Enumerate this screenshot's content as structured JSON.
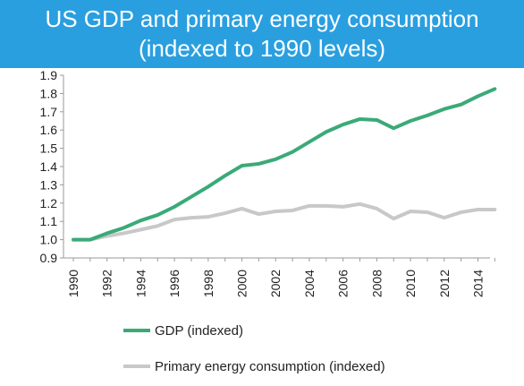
{
  "chart_data": {
    "type": "line",
    "title": [
      "US GDP and primary energy consumption",
      "(indexed to 1990 levels)"
    ],
    "xlabel": "",
    "ylabel": "",
    "x": [
      1990,
      1991,
      1992,
      1993,
      1994,
      1995,
      1996,
      1997,
      1998,
      1999,
      2000,
      2001,
      2002,
      2003,
      2004,
      2005,
      2006,
      2007,
      2008,
      2009,
      2010,
      2011,
      2012,
      2013,
      2014,
      2015
    ],
    "x_ticks": [
      "1990",
      "1992",
      "1994",
      "1996",
      "1998",
      "2000",
      "2002",
      "2004",
      "2006",
      "2008",
      "2010",
      "2012",
      "2014"
    ],
    "y_ticks": [
      "0.9",
      "1.0",
      "1.1",
      "1.2",
      "1.3",
      "1.4",
      "1.5",
      "1.6",
      "1.7",
      "1.8",
      "1.9"
    ],
    "ylim": [
      0.9,
      1.9
    ],
    "grid": false,
    "legend_position": "bottom",
    "series": [
      {
        "name": "GDP (indexed)",
        "color": "#3aaa78",
        "values": [
          1.0,
          1.0,
          1.035,
          1.065,
          1.105,
          1.135,
          1.18,
          1.235,
          1.29,
          1.35,
          1.405,
          1.415,
          1.44,
          1.48,
          1.535,
          1.59,
          1.63,
          1.66,
          1.655,
          1.61,
          1.65,
          1.68,
          1.715,
          1.74,
          1.785,
          1.825
        ]
      },
      {
        "name": "Primary energy consumption (indexed)",
        "color": "#c8c8c8",
        "values": [
          1.0,
          1.0,
          1.02,
          1.035,
          1.055,
          1.075,
          1.11,
          1.12,
          1.125,
          1.145,
          1.17,
          1.14,
          1.155,
          1.16,
          1.185,
          1.185,
          1.18,
          1.195,
          1.17,
          1.115,
          1.155,
          1.15,
          1.12,
          1.15,
          1.165,
          1.165
        ]
      }
    ]
  }
}
